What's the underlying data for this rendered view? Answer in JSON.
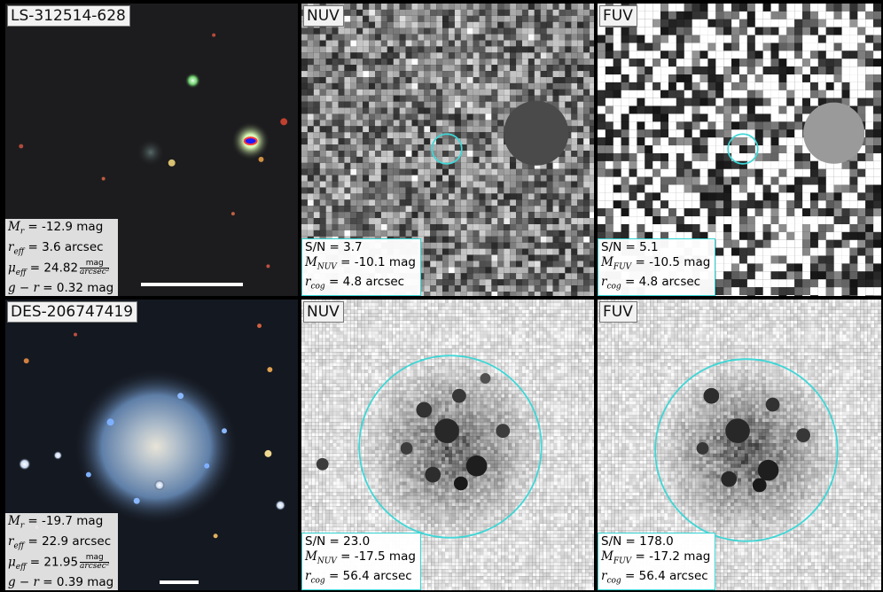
{
  "rows": [
    {
      "optical": {
        "title": "LS-312514-628",
        "m_r": "-12.9 mag",
        "r_eff": "3.6 arcsec",
        "mu_eff": "24.82",
        "mu_unit_num": "mag",
        "mu_unit_den": "arcsec²",
        "g_r": "0.32 mag"
      },
      "nuv": {
        "title": "NUV",
        "sn": "S/N = 3.7",
        "mag": "-10.1 mag",
        "rcog": "4.8 arcsec"
      },
      "fuv": {
        "title": "FUV",
        "sn": "S/N = 5.1",
        "mag": "-10.5 mag",
        "rcog": "4.8 arcsec"
      }
    },
    {
      "optical": {
        "title": "DES-206747419",
        "m_r": "-19.7 mag",
        "r_eff": "22.9 arcsec",
        "mu_eff": "21.95",
        "mu_unit_num": "mag",
        "mu_unit_den": "arcsec²",
        "g_r": "0.39 mag"
      },
      "nuv": {
        "title": "NUV",
        "sn": "S/N = 23.0",
        "mag": "-17.5 mag",
        "rcog": "56.4 arcsec"
      },
      "fuv": {
        "title": "FUV",
        "sn": "S/N = 178.0",
        "mag": "-17.2 mag",
        "rcog": "56.4 arcsec"
      }
    }
  ],
  "labels": {
    "mr": "M",
    "mr_sub": "r",
    "reff": "r",
    "reff_sub": "eff",
    "mueff": "μ",
    "mueff_sub": "eff",
    "gr": "g − r",
    "mnuv": "M",
    "mnuv_sub": "NUV",
    "mfuv": "M",
    "mfuv_sub": "FUV",
    "rcog": "r",
    "rcog_sub": "cog"
  },
  "colors": {
    "aperture": "#3fd6d6",
    "scalebar": "#ffffff"
  }
}
